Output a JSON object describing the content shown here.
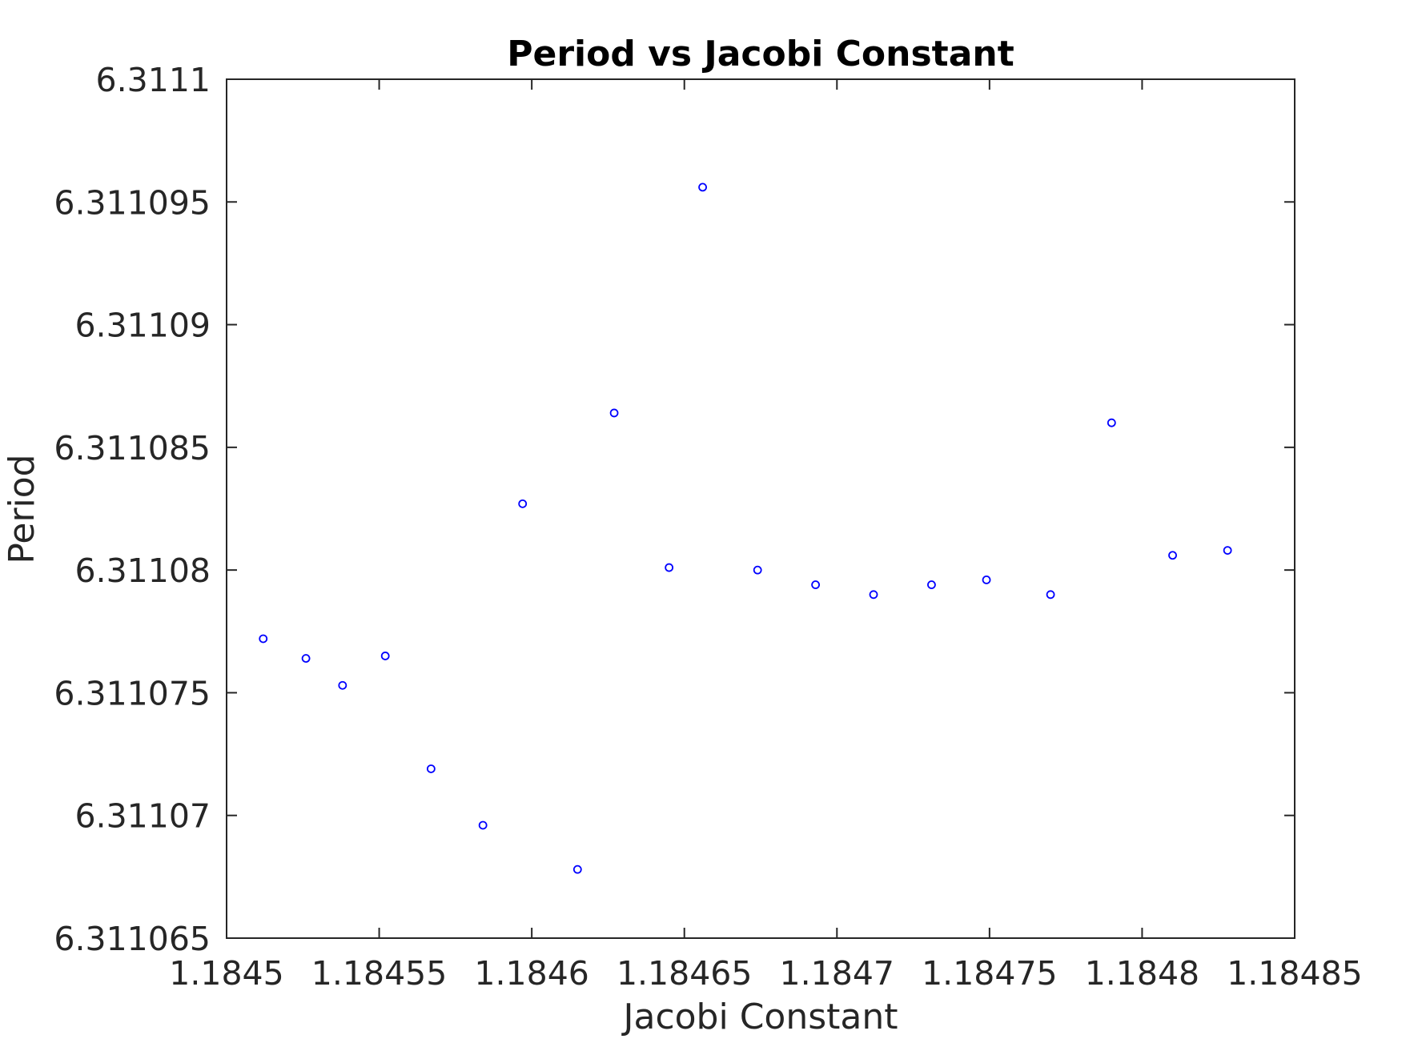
{
  "chart_data": {
    "type": "scatter",
    "title": "Period vs Jacobi Constant",
    "xlabel": "Jacobi Constant",
    "ylabel": "Period",
    "xlim": [
      1.1845,
      1.18485
    ],
    "ylim": [
      6.311065,
      6.3111
    ],
    "xticks": [
      1.1845,
      1.18455,
      1.1846,
      1.18465,
      1.1847,
      1.18475,
      1.1848,
      1.18485
    ],
    "xtick_labels": [
      "1.1845",
      "1.18455",
      "1.1846",
      "1.18465",
      "1.1847",
      "1.18475",
      "1.1848",
      "1.18485"
    ],
    "yticks": [
      6.311065,
      6.31107,
      6.311075,
      6.31108,
      6.311085,
      6.31109,
      6.311095,
      6.3111
    ],
    "ytick_labels": [
      "6.311065",
      "6.31107",
      "6.311075",
      "6.31108",
      "6.311085",
      "6.31109",
      "6.311095",
      "6.3111"
    ],
    "grid": false,
    "marker": "circle",
    "marker_color": "#0000ff",
    "series": [
      {
        "name": "Period",
        "x": [
          1.184512,
          1.184526,
          1.184538,
          1.184552,
          1.184567,
          1.184584,
          1.184597,
          1.184615,
          1.184627,
          1.184645,
          1.184656,
          1.184674,
          1.184693,
          1.184712,
          1.184731,
          1.184749,
          1.18477,
          1.18479,
          1.18481,
          1.184828
        ],
        "y": [
          6.3110772,
          6.3110764,
          6.3110753,
          6.3110765,
          6.3110719,
          6.3110696,
          6.3110827,
          6.3110678,
          6.3110864,
          6.3110801,
          6.3110956,
          6.31108,
          6.3110794,
          6.311079,
          6.3110794,
          6.3110796,
          6.311079,
          6.311086,
          6.3110806,
          6.3110808
        ]
      }
    ]
  }
}
